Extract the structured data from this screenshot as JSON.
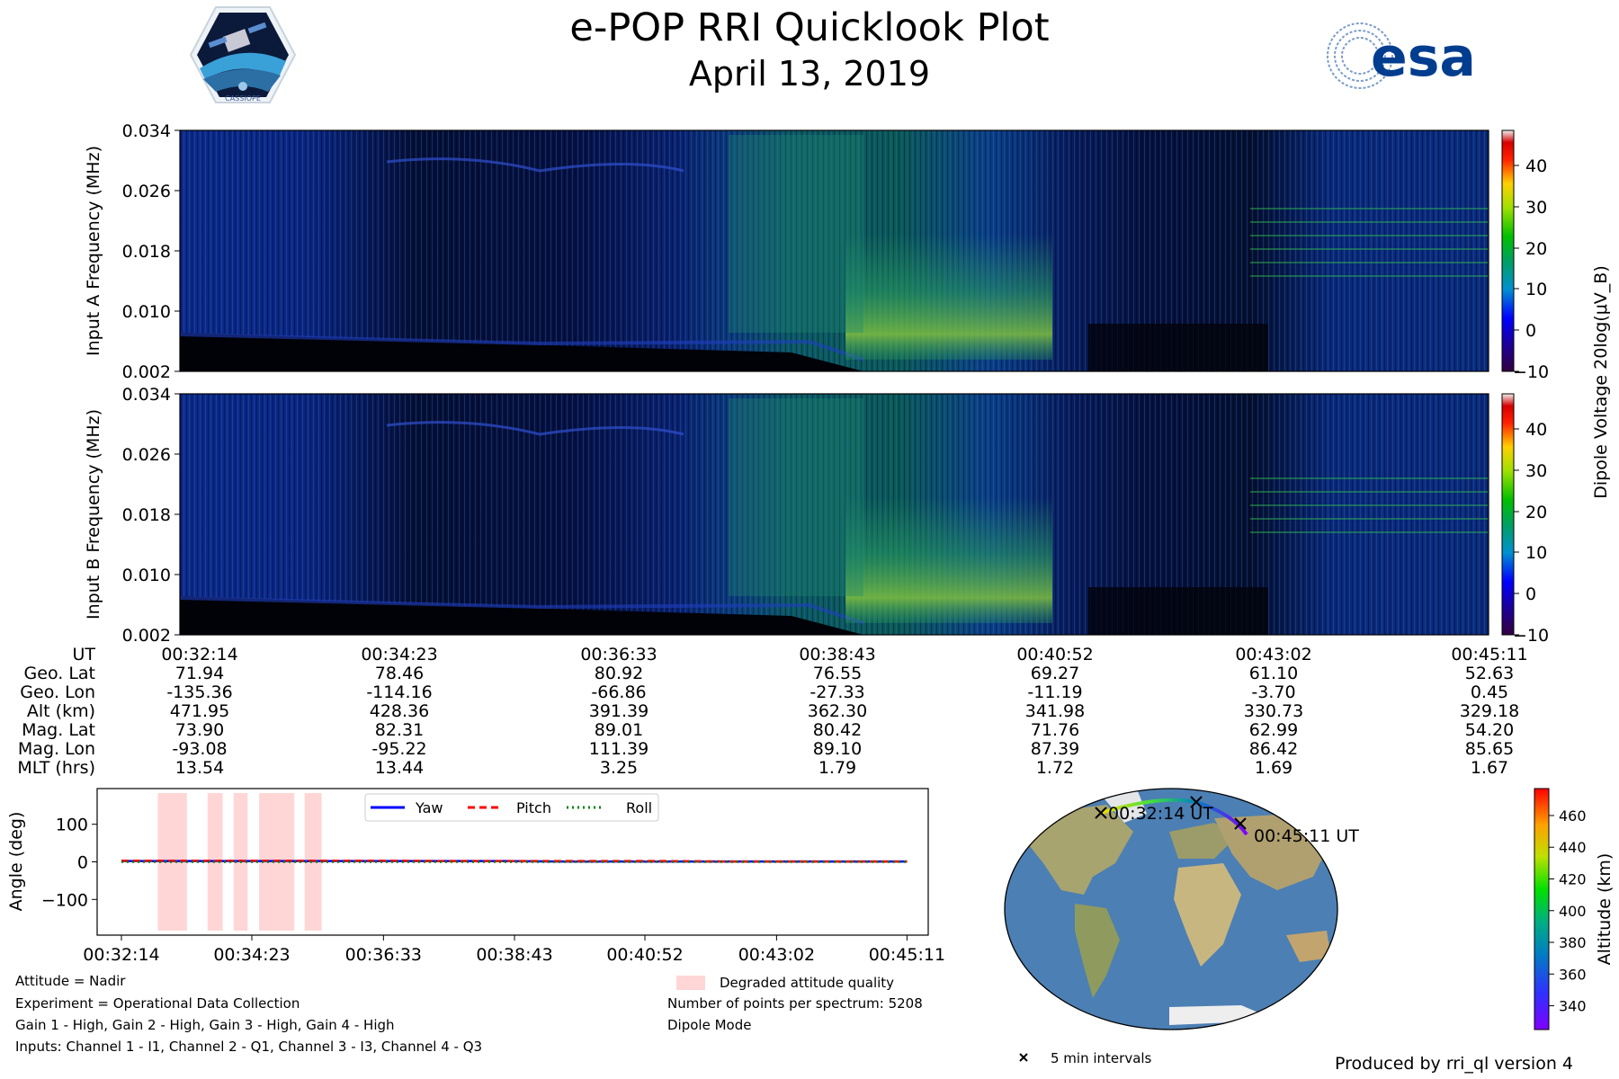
{
  "header": {
    "title": "e-POP RRI Quicklook Plot",
    "date": "April 13, 2019",
    "cassiope_logo_text": "CASSIOPE",
    "esa_logo_text": "esa"
  },
  "chart_data": [
    {
      "type": "heatmap",
      "name": "spectrogram-input-a",
      "ylabel": "Input A Frequency (MHz)",
      "ylim": [
        0.002,
        0.034
      ],
      "yticks": [
        "0.034",
        "0.026",
        "0.018",
        "0.010",
        "0.002"
      ],
      "colorbar": {
        "label": "Dipole Voltage 20log(μV_B)",
        "range": [
          -10,
          48
        ],
        "ticks": [
          "40",
          "30",
          "20",
          "10",
          "0",
          "−10"
        ]
      }
    },
    {
      "type": "heatmap",
      "name": "spectrogram-input-b",
      "ylabel": "Input B Frequency (MHz)",
      "ylim": [
        0.002,
        0.034
      ],
      "yticks": [
        "0.034",
        "0.026",
        "0.018",
        "0.010",
        "0.002"
      ],
      "colorbar": {
        "label": "Dipole Voltage 20log(μV_B)",
        "range": [
          -10,
          48
        ],
        "ticks": [
          "40",
          "30",
          "20",
          "10",
          "0",
          "−10"
        ]
      }
    },
    {
      "type": "table",
      "name": "ephemeris",
      "row_labels": [
        "UT",
        "Geo. Lat",
        "Geo. Lon",
        "Alt (km)",
        "Mag. Lat",
        "Mag. Lon",
        "MLT (hrs)"
      ],
      "columns": [
        [
          "00:32:14",
          "71.94",
          "-135.36",
          "471.95",
          "73.90",
          "-93.08",
          "13.54"
        ],
        [
          "00:34:23",
          "78.46",
          "-114.16",
          "428.36",
          "82.31",
          "-95.22",
          "13.44"
        ],
        [
          "00:36:33",
          "80.92",
          "-66.86",
          "391.39",
          "89.01",
          "111.39",
          "3.25"
        ],
        [
          "00:38:43",
          "76.55",
          "-27.33",
          "362.30",
          "80.42",
          "89.10",
          "1.79"
        ],
        [
          "00:40:52",
          "69.27",
          "-11.19",
          "341.98",
          "71.76",
          "87.39",
          "1.72"
        ],
        [
          "00:43:02",
          "61.10",
          "-3.70",
          "330.73",
          "62.99",
          "86.42",
          "1.69"
        ],
        [
          "00:45:11",
          "52.63",
          "0.45",
          "329.18",
          "54.20",
          "85.65",
          "1.67"
        ]
      ]
    },
    {
      "type": "line",
      "name": "attitude",
      "ylabel": "Angle (deg)",
      "ylim": [
        -195,
        195
      ],
      "yticks": [
        100,
        0,
        -100
      ],
      "ytick_labels": [
        "100",
        "0",
        "−100"
      ],
      "x": [
        0,
        0.9,
        1.8,
        2.7,
        3.6,
        4.5,
        5.4,
        6.3,
        7.2,
        8.1,
        9.0,
        9.9,
        10.8,
        11.7,
        12.6,
        12.95
      ],
      "xlim": [
        -0.4,
        13.3
      ],
      "xticks": [
        0,
        2.15,
        4.32,
        6.48,
        8.63,
        10.8,
        12.95
      ],
      "xtick_labels": [
        "00:32:14",
        "00:34:23",
        "00:36:33",
        "00:38:43",
        "00:40:52",
        "00:43:02",
        "00:45:11"
      ],
      "series": [
        {
          "name": "Yaw",
          "color": "#0000ff",
          "dash": "solid",
          "values": [
            2,
            2,
            2,
            2,
            2,
            2,
            2,
            2,
            1,
            1,
            1,
            1,
            1,
            1,
            1,
            1
          ]
        },
        {
          "name": "Pitch",
          "color": "#ff0000",
          "dash": "dashed",
          "values": [
            3,
            3,
            3,
            3,
            3,
            3,
            2,
            2,
            2,
            2,
            2,
            1,
            1,
            1,
            1,
            1
          ]
        },
        {
          "name": "Roll",
          "color": "#008000",
          "dash": "dotted",
          "values": [
            0,
            0,
            0,
            0,
            0,
            0,
            0,
            0,
            0,
            0,
            0,
            0,
            0,
            0,
            0,
            0
          ]
        }
      ],
      "degraded_intervals": [
        [
          0.6,
          1.08
        ],
        [
          1.42,
          1.67
        ],
        [
          1.85,
          2.08
        ],
        [
          2.27,
          2.85
        ],
        [
          3.02,
          3.3
        ]
      ],
      "degraded_legend": "Degraded attitude quality"
    },
    {
      "type": "scatter",
      "name": "ground-track-map",
      "colorbar": {
        "label": "Altitude (km)",
        "range": [
          325,
          477
        ],
        "ticks": [
          460,
          440,
          420,
          400,
          380,
          360,
          340
        ]
      },
      "start_label": "00:32:14 UT",
      "end_label": "00:45:11 UT",
      "track": {
        "lon": [
          -135.36,
          -114.16,
          -66.86,
          -27.33,
          -11.19,
          -3.7,
          0.45
        ],
        "lat": [
          71.94,
          78.46,
          80.92,
          76.55,
          69.27,
          61.1,
          52.63
        ],
        "alt": [
          471.95,
          428.36,
          391.39,
          362.3,
          341.98,
          330.73,
          329.18
        ]
      },
      "interval_marker_legend": "5 min intervals"
    }
  ],
  "notes_left": [
    "Attitude = Nadir",
    "Experiment = Operational Data Collection",
    "Gain 1 - High, Gain 2 - High, Gain 3 - High, Gain 4 - High",
    "Inputs: Channel 1 - I1, Channel 2 - Q1, Channel 3 - I3, Channel 4 - Q3"
  ],
  "notes_right": [
    "Number of points per spectrum: 5208",
    "Dipole Mode"
  ],
  "footer": {
    "produced_by": "Produced by rri_ql version 4"
  },
  "colors": {
    "accent": "#0000ff",
    "degraded": "#ffd6d6",
    "esa_blue": "#003d8f"
  }
}
